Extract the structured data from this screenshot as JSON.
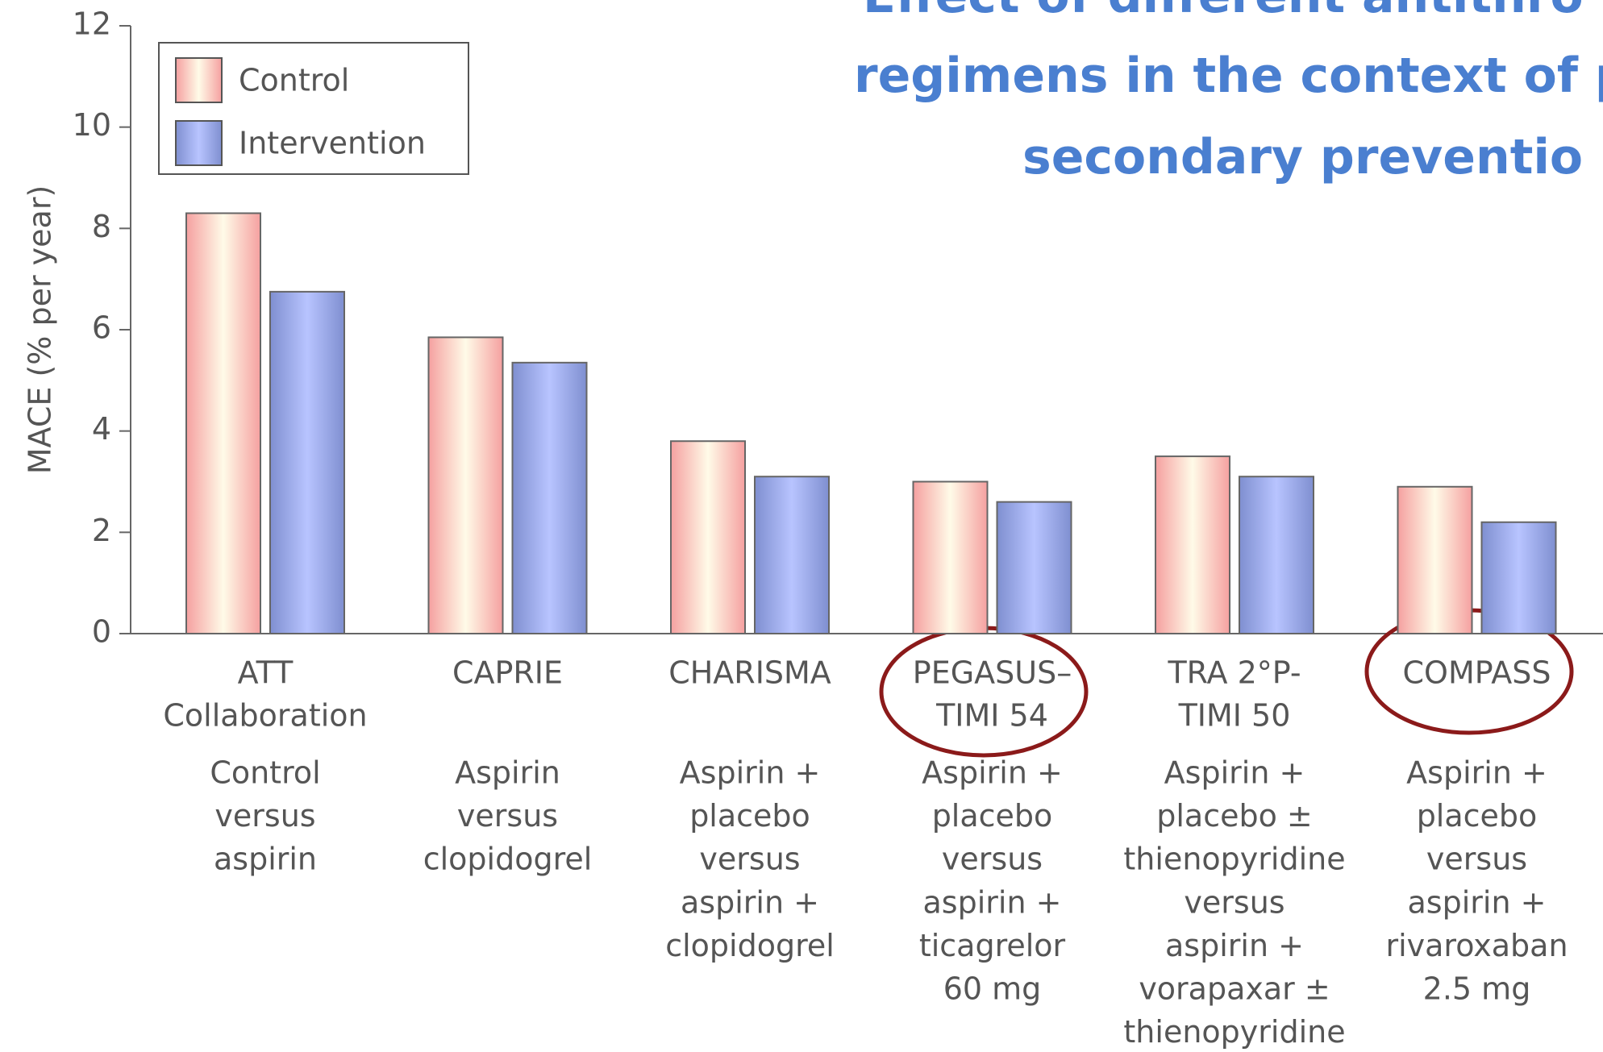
{
  "chart_data": {
    "type": "bar",
    "title_lines": [
      "Effect of different antithro",
      "regimens in the context of p",
      "secondary preventio"
    ],
    "y_label": "MACE (% per year)",
    "categories": [
      [
        "ATT",
        "Collaboration"
      ],
      [
        "CAPRIE"
      ],
      [
        "CHARISMA"
      ],
      [
        "PEGASUS–",
        "TIMI 54"
      ],
      [
        "TRA 2°P-",
        "TIMI 50"
      ],
      [
        "COMPASS"
      ]
    ],
    "descriptions": [
      [
        "Control",
        "versus",
        "aspirin"
      ],
      [
        "Aspirin",
        "versus",
        "clopidogrel"
      ],
      [
        "Aspirin +",
        "placebo",
        "versus",
        "aspirin +",
        "clopidogrel"
      ],
      [
        "Aspirin +",
        "placebo",
        "versus",
        "aspirin +",
        "ticagrelor",
        "60 mg"
      ],
      [
        "Aspirin +",
        "placebo ±",
        "thienopyridine",
        "versus",
        "aspirin +",
        "vorapaxar ±",
        "thienopyridine"
      ],
      [
        "Aspirin +",
        "placebo",
        "versus",
        "aspirin +",
        "rivaroxaban",
        "2.5 mg"
      ]
    ],
    "series": [
      {
        "name": "Control",
        "color": "#f7b8b8",
        "values": [
          8.3,
          5.85,
          3.8,
          3.0,
          3.5,
          2.9
        ]
      },
      {
        "name": "Intervention",
        "color": "#8f9fe0",
        "values": [
          6.75,
          5.35,
          3.1,
          2.6,
          3.1,
          2.2
        ]
      }
    ],
    "ylim": [
      0,
      12
    ],
    "yticks": [
      0,
      2,
      4,
      6,
      8,
      10,
      12
    ],
    "legend": "upper left"
  }
}
